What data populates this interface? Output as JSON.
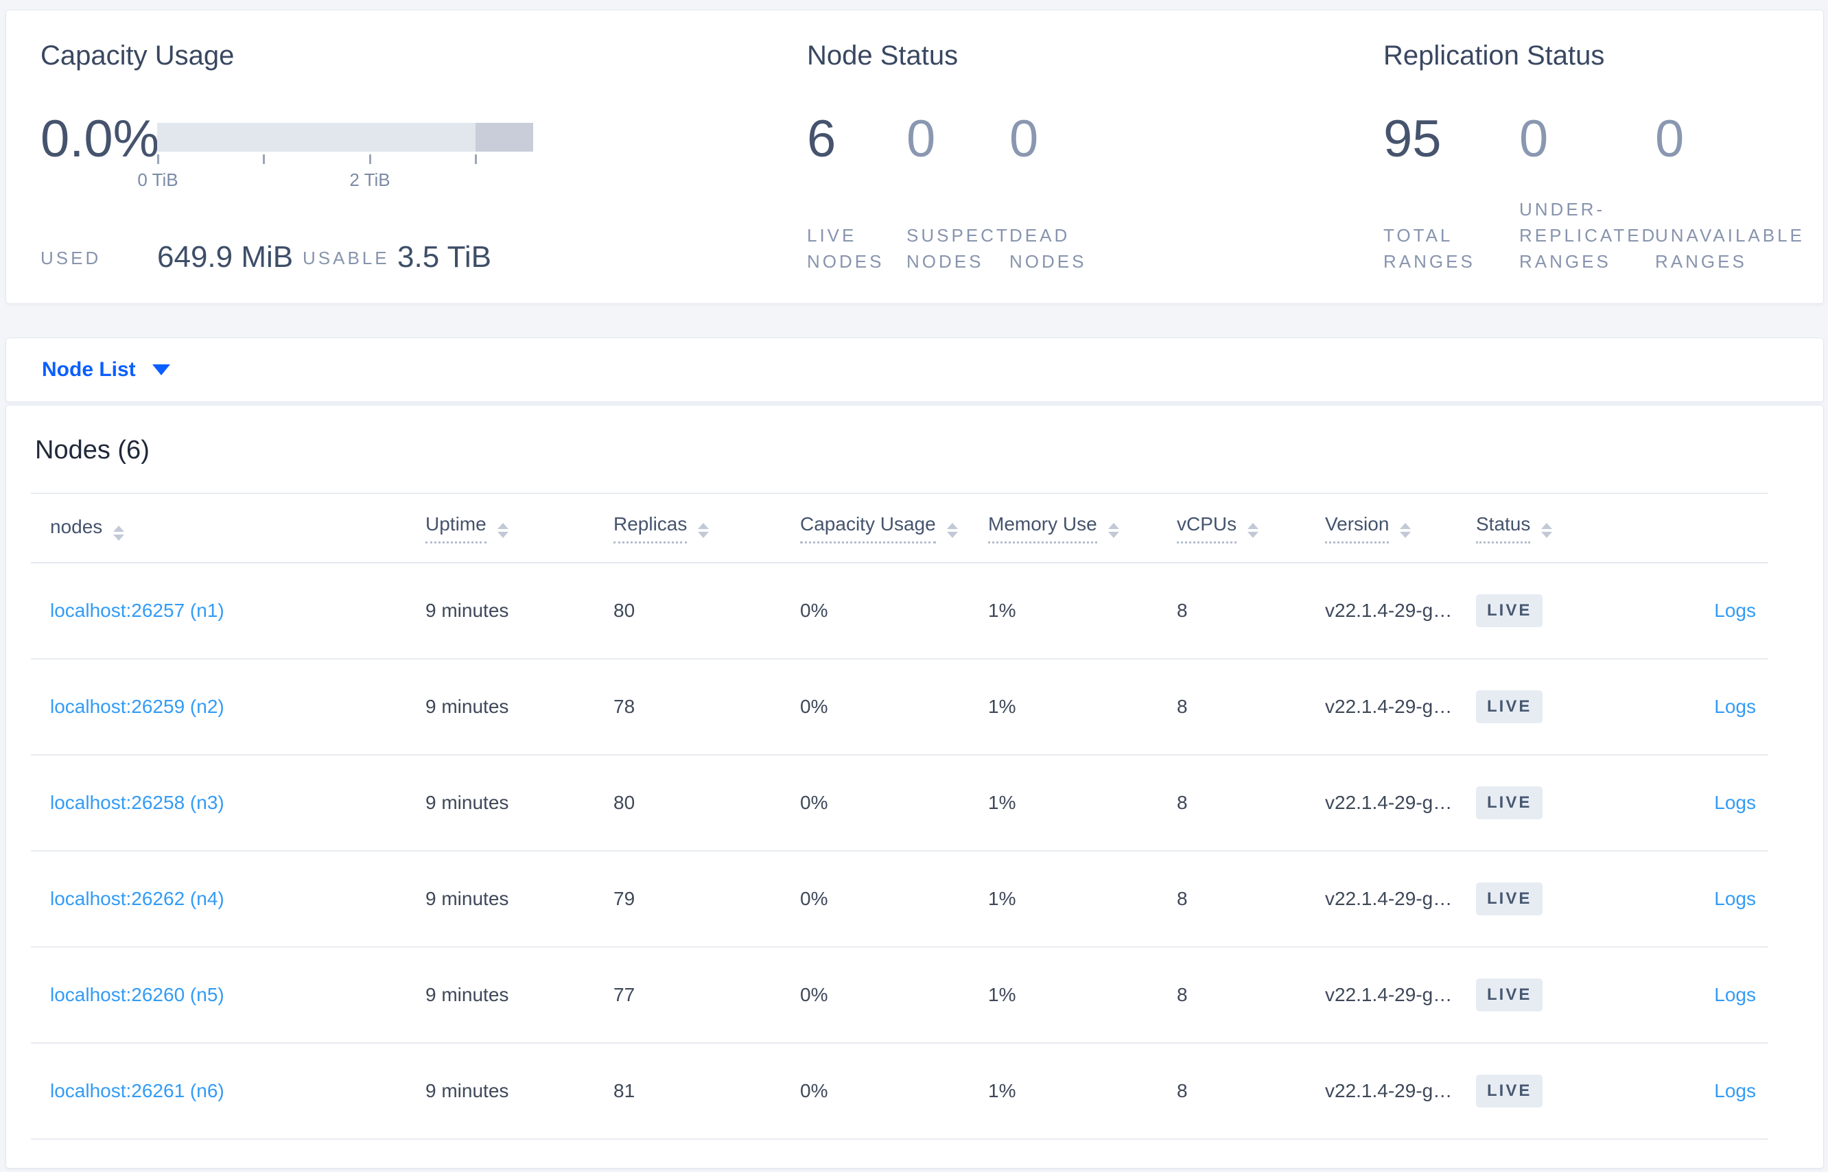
{
  "colors": {
    "selector_blue": "#0b5fff",
    "link_blue": "#329bf5",
    "metric_dark": "#46536d",
    "metric_muted": "#8a97b0",
    "badge_bg": "#e7ecf3",
    "badge_text": "#475872",
    "bar_light": "#e2e6ed",
    "bar_dark": "#c8cdd9"
  },
  "capacity_usage": {
    "title": "Capacity Usage",
    "percent": "0.0%",
    "ticks": [
      "0 TiB",
      "",
      "2 TiB",
      ""
    ],
    "used_label": "USED",
    "used_value": "649.9 MiB",
    "usable_label": "USABLE",
    "usable_value": "3.5 TiB"
  },
  "node_status": {
    "title": "Node Status",
    "metrics": [
      {
        "value": "6",
        "label": "LIVE\nNODES",
        "muted": false
      },
      {
        "value": "0",
        "label": "SUSPECT\nNODES",
        "muted": true
      },
      {
        "value": "0",
        "label": "DEAD\nNODES",
        "muted": true
      }
    ]
  },
  "replication_status": {
    "title": "Replication Status",
    "metrics": [
      {
        "value": "95",
        "label": "TOTAL\nRANGES",
        "muted": false
      },
      {
        "value": "0",
        "label": "UNDER-\nREPLICATED\nRANGES",
        "muted": true
      },
      {
        "value": "0",
        "label": "UNAVAILABLE\nRANGES",
        "muted": true
      }
    ]
  },
  "node_list_selector": {
    "label": "Node List"
  },
  "nodes_table": {
    "title": "Nodes (6)",
    "columns": [
      {
        "label": "nodes",
        "tooltip": false
      },
      {
        "label": "Uptime",
        "tooltip": true
      },
      {
        "label": "Replicas",
        "tooltip": true
      },
      {
        "label": "Capacity Usage",
        "tooltip": true
      },
      {
        "label": "Memory Use",
        "tooltip": true
      },
      {
        "label": "vCPUs",
        "tooltip": true
      },
      {
        "label": "Version",
        "tooltip": true
      },
      {
        "label": "Status",
        "tooltip": true
      },
      {
        "label": "",
        "tooltip": false
      }
    ],
    "rows": [
      {
        "node": "localhost:26257 (n1)",
        "uptime": "9 minutes",
        "replicas": "80",
        "capacity_usage": "0%",
        "memory_use": "1%",
        "vcpus": "8",
        "version": "v22.1.4-29-g…",
        "status": "LIVE",
        "logs": "Logs"
      },
      {
        "node": "localhost:26259 (n2)",
        "uptime": "9 minutes",
        "replicas": "78",
        "capacity_usage": "0%",
        "memory_use": "1%",
        "vcpus": "8",
        "version": "v22.1.4-29-g…",
        "status": "LIVE",
        "logs": "Logs"
      },
      {
        "node": "localhost:26258 (n3)",
        "uptime": "9 minutes",
        "replicas": "80",
        "capacity_usage": "0%",
        "memory_use": "1%",
        "vcpus": "8",
        "version": "v22.1.4-29-g…",
        "status": "LIVE",
        "logs": "Logs"
      },
      {
        "node": "localhost:26262 (n4)",
        "uptime": "9 minutes",
        "replicas": "79",
        "capacity_usage": "0%",
        "memory_use": "1%",
        "vcpus": "8",
        "version": "v22.1.4-29-g…",
        "status": "LIVE",
        "logs": "Logs"
      },
      {
        "node": "localhost:26260 (n5)",
        "uptime": "9 minutes",
        "replicas": "77",
        "capacity_usage": "0%",
        "memory_use": "1%",
        "vcpus": "8",
        "version": "v22.1.4-29-g…",
        "status": "LIVE",
        "logs": "Logs"
      },
      {
        "node": "localhost:26261 (n6)",
        "uptime": "9 minutes",
        "replicas": "81",
        "capacity_usage": "0%",
        "memory_use": "1%",
        "vcpus": "8",
        "version": "v22.1.4-29-g…",
        "status": "LIVE",
        "logs": "Logs"
      }
    ]
  }
}
